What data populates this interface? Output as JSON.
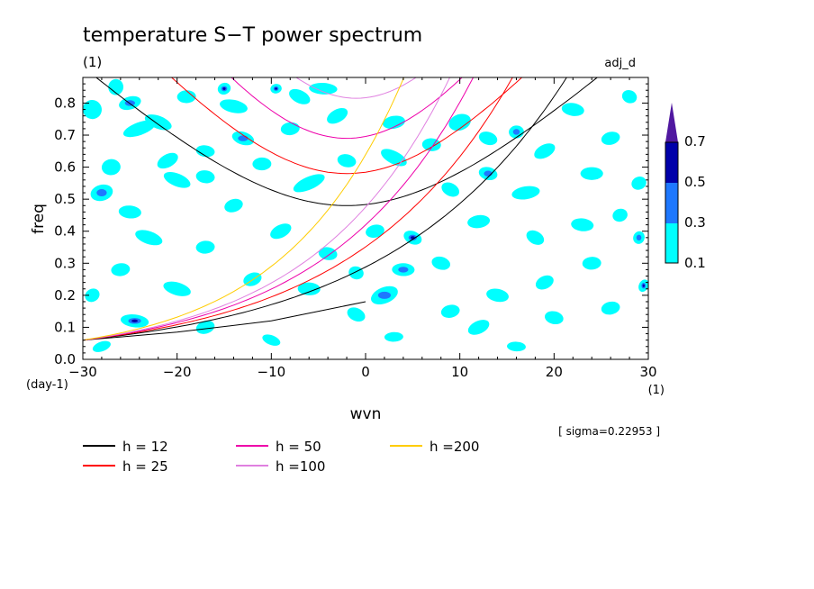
{
  "chart_data": {
    "type": "contour",
    "title": "temperature S−T power spectrum",
    "subtitle_left": "(1)",
    "subtitle_right": "adj_d",
    "xlabel": "wvn",
    "ylabel": "freq",
    "x_unit": "(1)",
    "y_unit": "(day-1)",
    "xlim": [
      -30,
      30
    ],
    "ylim": [
      0,
      0.88
    ],
    "x_ticks": [
      -30,
      -20,
      -10,
      0,
      10,
      20,
      30
    ],
    "y_ticks": [
      0.0,
      0.1,
      0.2,
      0.3,
      0.4,
      0.5,
      0.6,
      0.7,
      0.8
    ],
    "y_tick_labels": [
      "0.0",
      "0.1",
      "0.2",
      "0.3",
      "0.4",
      "0.5",
      "0.6",
      "0.7",
      "0.8"
    ],
    "annotation": "[ sigma=0.22953 ]",
    "colorbar": {
      "levels": [
        "0.1",
        "0.3",
        "0.5",
        "0.7"
      ],
      "colors": [
        "#00ffff",
        "#1e78ff",
        "#0000aa",
        "#5018a0"
      ]
    },
    "dispersion_curves": [
      {
        "name": "h = 12",
        "color": "#000000",
        "ig_min_freq": 0.48,
        "ig_min_wvn": -2,
        "kelvin_slope": 0.0292
      },
      {
        "name": "h = 25",
        "color": "#ff0000",
        "ig_min_freq": 0.58,
        "ig_min_wvn": -2,
        "kelvin_slope": 0.0375
      },
      {
        "name": "h = 50",
        "color": "#ee00aa",
        "ig_min_freq": 0.69,
        "ig_min_wvn": -2,
        "kelvin_slope": 0.047
      },
      {
        "name": "h =100",
        "color": "#e080e0",
        "ig_min_freq": 0.815,
        "ig_min_wvn": -1,
        "kelvin_slope": 0.055
      },
      {
        "name": "h =200",
        "color": "#ffcc00",
        "ig_min_freq": null,
        "ig_min_wvn": null,
        "kelvin_slope": 0.08
      }
    ],
    "rossby_curve": {
      "name": "rossby-curve",
      "color": "#000000",
      "points": [
        [
          -30,
          0.06
        ],
        [
          -20,
          0.085
        ],
        [
          -10,
          0.12
        ],
        [
          -5,
          0.15
        ],
        [
          0,
          0.18
        ]
      ]
    },
    "contour_blobs": [
      [
        -29,
        0.78,
        1.0,
        0.03,
        0
      ],
      [
        -26.5,
        0.85,
        0.8,
        0.025,
        0
      ],
      [
        -25,
        0.8,
        1.2,
        0.02,
        1
      ],
      [
        -22,
        0.74,
        1.5,
        0.02,
        0
      ],
      [
        -19,
        0.82,
        1.0,
        0.02,
        0
      ],
      [
        -15,
        0.845,
        0.7,
        0.018,
        2
      ],
      [
        -14,
        0.79,
        1.5,
        0.02,
        0
      ],
      [
        -9.5,
        0.845,
        0.6,
        0.015,
        2
      ],
      [
        -7,
        0.82,
        1.2,
        0.02,
        0
      ],
      [
        -4.5,
        0.845,
        1.5,
        0.018,
        0
      ],
      [
        -24,
        0.72,
        1.8,
        0.02,
        0
      ],
      [
        -13,
        0.69,
        1.2,
        0.02,
        1
      ],
      [
        -27,
        0.6,
        1.0,
        0.025,
        0
      ],
      [
        -21,
        0.62,
        1.2,
        0.02,
        0
      ],
      [
        -17,
        0.65,
        1.0,
        0.018,
        0
      ],
      [
        -28,
        0.52,
        1.2,
        0.025,
        1
      ],
      [
        -20,
        0.56,
        1.5,
        0.02,
        0
      ],
      [
        -11,
        0.61,
        1.0,
        0.02,
        0
      ],
      [
        -6,
        0.55,
        1.8,
        0.02,
        0
      ],
      [
        -2,
        0.62,
        1.0,
        0.02,
        0
      ],
      [
        3,
        0.74,
        1.2,
        0.02,
        0
      ],
      [
        3,
        0.63,
        1.5,
        0.02,
        0
      ],
      [
        7,
        0.67,
        1.0,
        0.02,
        0
      ],
      [
        10,
        0.74,
        1.2,
        0.025,
        0
      ],
      [
        13,
        0.69,
        1.0,
        0.02,
        0
      ],
      [
        16,
        0.71,
        0.8,
        0.02,
        1
      ],
      [
        19,
        0.65,
        1.2,
        0.02,
        0
      ],
      [
        22,
        0.78,
        1.2,
        0.02,
        0
      ],
      [
        26,
        0.69,
        1.0,
        0.02,
        0
      ],
      [
        28,
        0.82,
        0.8,
        0.02,
        0
      ],
      [
        24,
        0.58,
        1.2,
        0.02,
        0
      ],
      [
        29,
        0.55,
        0.8,
        0.02,
        0
      ],
      [
        13,
        0.58,
        1.0,
        0.02,
        1
      ],
      [
        17,
        0.52,
        1.5,
        0.02,
        0
      ],
      [
        9,
        0.53,
        1.0,
        0.02,
        0
      ],
      [
        -25,
        0.46,
        1.2,
        0.02,
        0
      ],
      [
        -14,
        0.48,
        1.0,
        0.02,
        0
      ],
      [
        -23,
        0.38,
        1.5,
        0.02,
        0
      ],
      [
        -17,
        0.35,
        1.0,
        0.02,
        0
      ],
      [
        -9,
        0.4,
        1.2,
        0.02,
        0
      ],
      [
        -4,
        0.33,
        1.0,
        0.02,
        0
      ],
      [
        1,
        0.4,
        1.0,
        0.02,
        0
      ],
      [
        5,
        0.38,
        1.0,
        0.02,
        2
      ],
      [
        4,
        0.28,
        1.2,
        0.02,
        1
      ],
      [
        2,
        0.2,
        1.5,
        0.025,
        1
      ],
      [
        8,
        0.3,
        1.0,
        0.02,
        0
      ],
      [
        12,
        0.43,
        1.2,
        0.02,
        0
      ],
      [
        18,
        0.38,
        1.0,
        0.02,
        0
      ],
      [
        23,
        0.42,
        1.2,
        0.02,
        0
      ],
      [
        27,
        0.45,
        0.8,
        0.02,
        0
      ],
      [
        29,
        0.38,
        0.6,
        0.02,
        1
      ],
      [
        24,
        0.3,
        1.0,
        0.02,
        0
      ],
      [
        19,
        0.24,
        1.0,
        0.02,
        0
      ],
      [
        14,
        0.2,
        1.2,
        0.02,
        0
      ],
      [
        9,
        0.15,
        1.0,
        0.02,
        0
      ],
      [
        -1,
        0.14,
        1.0,
        0.02,
        0
      ],
      [
        -6,
        0.22,
        1.2,
        0.02,
        0
      ],
      [
        -12,
        0.25,
        1.0,
        0.02,
        0
      ],
      [
        -20,
        0.22,
        1.5,
        0.02,
        0
      ],
      [
        -26,
        0.28,
        1.0,
        0.02,
        0
      ],
      [
        -29,
        0.2,
        0.8,
        0.02,
        0
      ],
      [
        -24.5,
        0.12,
        1.5,
        0.02,
        2
      ],
      [
        -17,
        0.1,
        1.0,
        0.02,
        0
      ],
      [
        -10,
        0.06,
        1.0,
        0.015,
        0
      ],
      [
        3,
        0.07,
        1.0,
        0.015,
        0
      ],
      [
        12,
        0.1,
        1.2,
        0.02,
        0
      ],
      [
        20,
        0.13,
        1.0,
        0.02,
        0
      ],
      [
        26,
        0.16,
        1.0,
        0.02,
        0
      ],
      [
        29.5,
        0.23,
        0.5,
        0.02,
        2
      ],
      [
        16,
        0.04,
        1.0,
        0.015,
        0
      ],
      [
        -28,
        0.04,
        1.0,
        0.015,
        0
      ],
      [
        -1,
        0.27,
        0.8,
        0.02,
        0
      ],
      [
        -8,
        0.72,
        1.0,
        0.02,
        0
      ],
      [
        -3,
        0.76,
        1.2,
        0.02,
        0
      ],
      [
        -17,
        0.57,
        1.0,
        0.02,
        0
      ]
    ]
  },
  "legend": {
    "items": [
      {
        "label": "h = 12",
        "color": "#000000"
      },
      {
        "label": "h = 25",
        "color": "#ff0000"
      },
      {
        "label": "h = 50",
        "color": "#ee00aa"
      },
      {
        "label": "h =100",
        "color": "#e080e0"
      },
      {
        "label": "h =200",
        "color": "#ffcc00"
      }
    ]
  }
}
